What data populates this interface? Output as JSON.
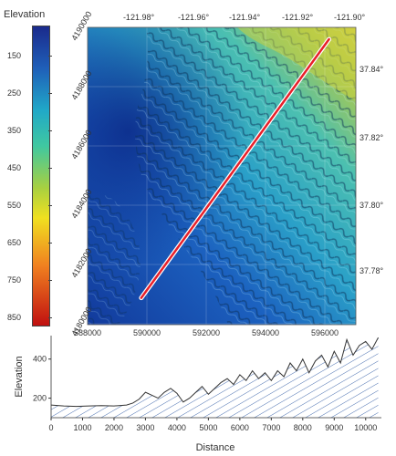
{
  "colorbar": {
    "title": "Elevation",
    "ticks": [
      "150",
      "250",
      "350",
      "450",
      "550",
      "650",
      "750",
      "850"
    ],
    "colors": [
      "#1a2a8c",
      "#1f5fb8",
      "#20a8c8",
      "#40c8a0",
      "#a8d040",
      "#f0e020",
      "#f08020",
      "#c01010"
    ]
  },
  "map": {
    "top_lon_labels": [
      "-121.98°",
      "-121.96°",
      "-121.94°",
      "-121.92°",
      "-121.90°"
    ],
    "right_lat_labels": [
      "37.84°",
      "37.82°",
      "37.80°",
      "37.78°"
    ],
    "left_northing_labels": [
      "4190000",
      "4188000",
      "4186000",
      "4184000",
      "4182000",
      "4180000"
    ],
    "bottom_easting_labels": [
      "588000",
      "590000",
      "592000",
      "594000",
      "596000"
    ],
    "profile_line": {
      "start": {
        "easting": 589800,
        "northing": 4180900
      },
      "end": {
        "easting": 596100,
        "northing": 4189600
      },
      "color": "#e8202a"
    }
  },
  "profile": {
    "xlabel": "Distance",
    "ylabel": "Elevation",
    "x_ticks": [
      "0",
      "1000",
      "2000",
      "3000",
      "4000",
      "5000",
      "6000",
      "7000",
      "8000",
      "9000",
      "10000"
    ],
    "y_ticks": [
      "400",
      "200"
    ]
  },
  "chart_data": {
    "type": "area",
    "xlabel": "Distance",
    "ylabel": "Elevation",
    "xlim": [
      0,
      10500
    ],
    "ylim": [
      100,
      520
    ],
    "x": [
      0,
      400,
      800,
      1200,
      1600,
      2000,
      2400,
      2600,
      2800,
      3000,
      3200,
      3400,
      3600,
      3800,
      4000,
      4200,
      4400,
      4600,
      4800,
      5000,
      5200,
      5400,
      5600,
      5800,
      6000,
      6200,
      6400,
      6600,
      6800,
      7000,
      7200,
      7400,
      7600,
      7800,
      8000,
      8200,
      8400,
      8600,
      8800,
      9000,
      9200,
      9400,
      9600,
      9800,
      10000,
      10200,
      10400
    ],
    "y": [
      165,
      160,
      158,
      160,
      162,
      160,
      165,
      175,
      195,
      230,
      215,
      200,
      230,
      250,
      225,
      180,
      200,
      230,
      260,
      220,
      250,
      280,
      300,
      270,
      320,
      290,
      340,
      300,
      330,
      290,
      340,
      310,
      380,
      340,
      400,
      330,
      390,
      420,
      360,
      440,
      380,
      500,
      420,
      470,
      490,
      450,
      510
    ]
  }
}
